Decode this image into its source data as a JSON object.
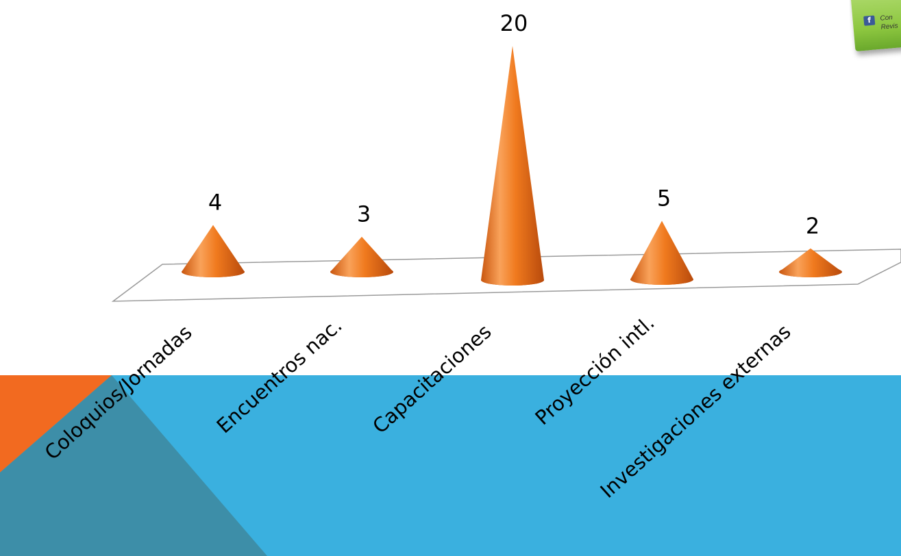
{
  "colors": {
    "background": "#ffffff",
    "band_blue": "#3ab0df",
    "triangle_orange": "#f26a20",
    "triangle_dark": "#3d8ea8",
    "cone_light": "#f9a25a",
    "cone_mid": "#f07a1e",
    "cone_dark": "#b84a0c",
    "floor_stroke": "#9a9a9a"
  },
  "badge": {
    "icon": "facebook-icon",
    "icon_glyph": "f",
    "line1": "Con",
    "line2": "Revis"
  },
  "chart_data": {
    "type": "bar",
    "style": "3d-cone",
    "categories": [
      "Coloquios/Jornadas",
      "Encuentros nac.",
      "Capacitaciones",
      "Proyección intl.",
      "Investigaciones externas"
    ],
    "values": [
      4,
      3,
      20,
      5,
      2
    ],
    "data_labels": [
      "4",
      "3",
      "20",
      "5",
      "2"
    ],
    "ylim": [
      0,
      20
    ],
    "grid": false,
    "legend": false,
    "title": "",
    "xlabel": "",
    "ylabel": ""
  }
}
